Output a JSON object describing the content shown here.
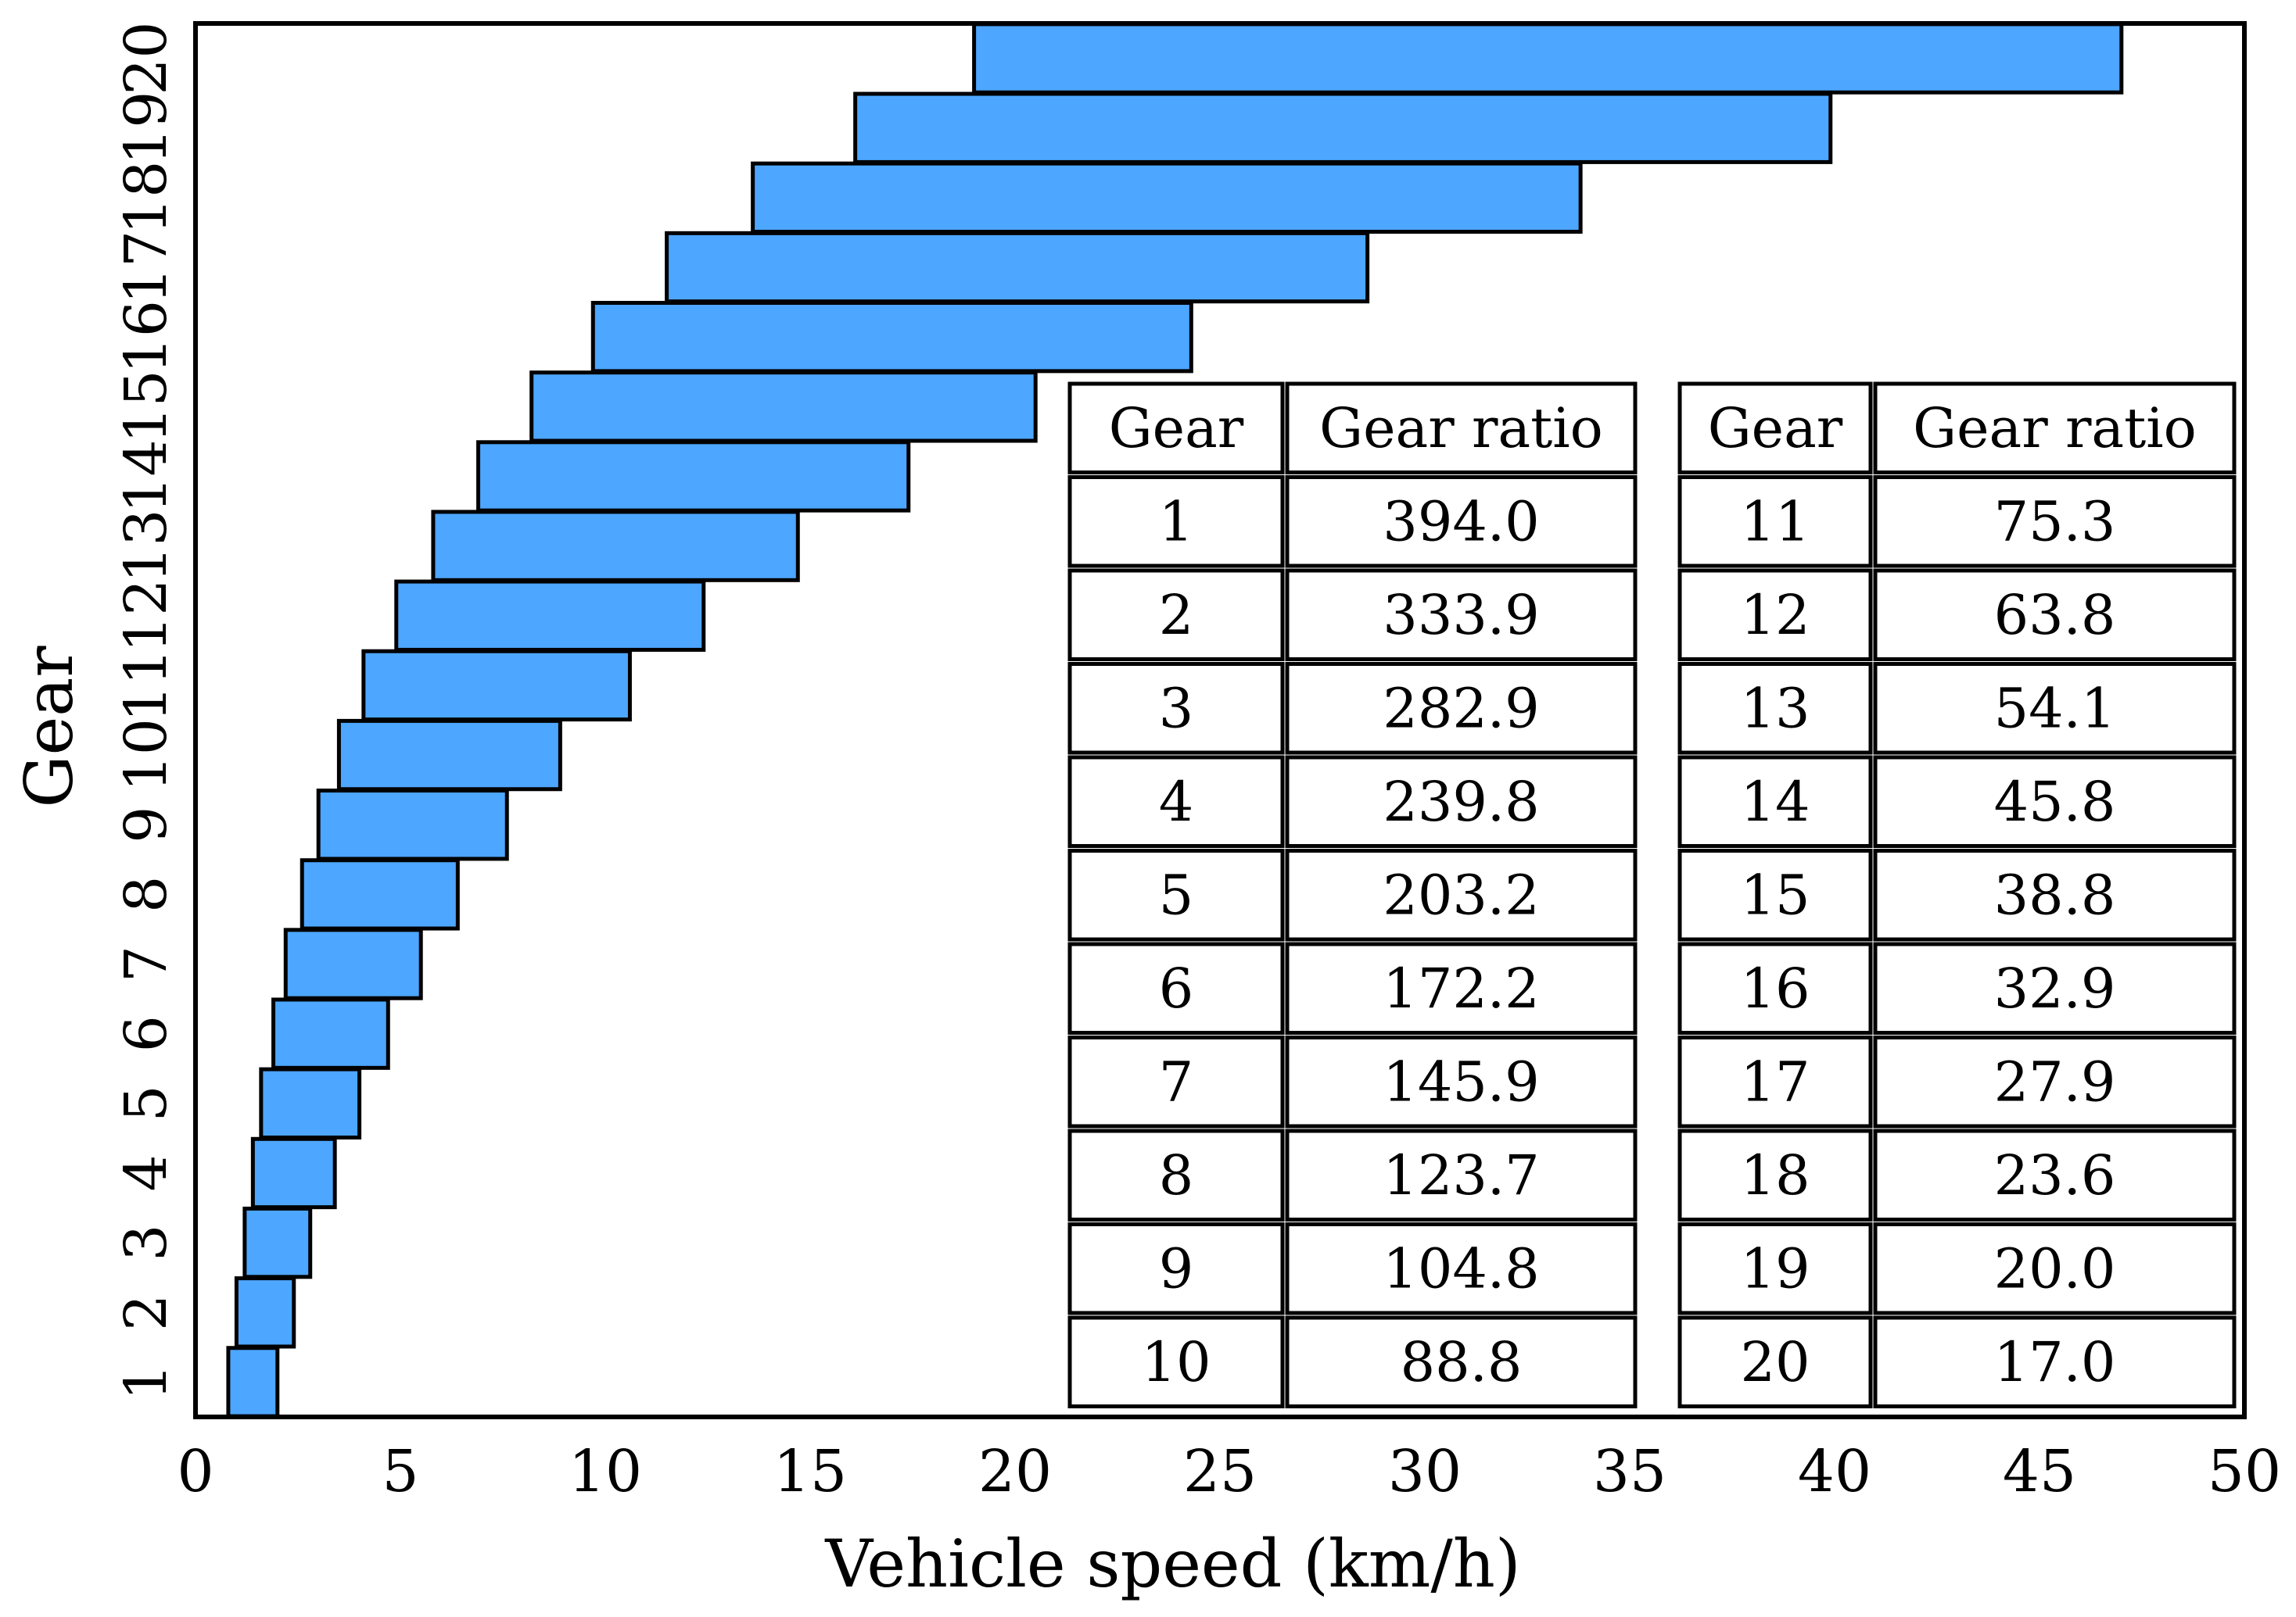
{
  "chart_data": {
    "type": "bar",
    "orientation": "horizontal-range",
    "xlabel": "Vehicle speed (km/h)",
    "ylabel": "Gear",
    "xlim": [
      0,
      50
    ],
    "x_ticks": [
      "0",
      "5",
      "10",
      "15",
      "20",
      "25",
      "30",
      "35",
      "40",
      "45",
      "50"
    ],
    "categories": [
      "1",
      "2",
      "3",
      "4",
      "5",
      "6",
      "7",
      "8",
      "9",
      "10",
      "11",
      "12",
      "13",
      "14",
      "15",
      "16",
      "17",
      "18",
      "19",
      "20"
    ],
    "ranges": [
      [
        0.8,
        2.0
      ],
      [
        1.0,
        2.4
      ],
      [
        1.2,
        2.8
      ],
      [
        1.4,
        3.4
      ],
      [
        1.6,
        4.0
      ],
      [
        1.9,
        4.7
      ],
      [
        2.2,
        5.5
      ],
      [
        2.6,
        6.4
      ],
      [
        3.0,
        7.6
      ],
      [
        3.5,
        8.9
      ],
      [
        4.1,
        10.6
      ],
      [
        4.9,
        12.4
      ],
      [
        5.8,
        14.7
      ],
      [
        6.9,
        17.4
      ],
      [
        8.2,
        20.5
      ],
      [
        9.7,
        24.3
      ],
      [
        11.5,
        28.6
      ],
      [
        13.6,
        33.8
      ],
      [
        16.1,
        39.9
      ],
      [
        19.0,
        47.0
      ]
    ],
    "table": {
      "headers": [
        "Gear",
        "Gear ratio",
        "Gear",
        "Gear ratio"
      ],
      "rows": [
        [
          "1",
          "394.0",
          "11",
          "75.3"
        ],
        [
          "2",
          "333.9",
          "12",
          "63.8"
        ],
        [
          "3",
          "282.9",
          "13",
          "54.1"
        ],
        [
          "4",
          "239.8",
          "14",
          "45.8"
        ],
        [
          "5",
          "203.2",
          "15",
          "38.8"
        ],
        [
          "6",
          "172.2",
          "16",
          "32.9"
        ],
        [
          "7",
          "145.9",
          "17",
          "27.9"
        ],
        [
          "8",
          "123.7",
          "18",
          "23.6"
        ],
        [
          "9",
          "104.8",
          "19",
          "20.0"
        ],
        [
          "10",
          "88.8",
          "20",
          "17.0"
        ]
      ]
    }
  }
}
